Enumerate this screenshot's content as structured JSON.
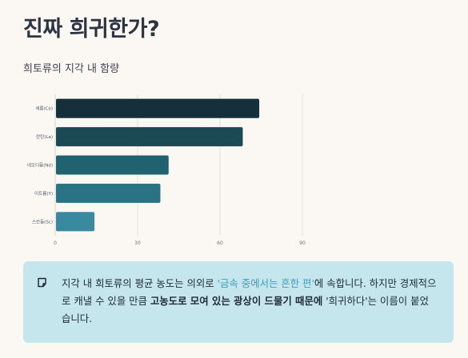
{
  "page": {
    "title": "진짜 희귀한가?",
    "subtitle": "희토류의 지각 내 함량"
  },
  "chart_data": {
    "type": "bar",
    "orientation": "horizontal",
    "title": "희토류의 지각 내 함량",
    "categories": [
      "세륨(Ce)",
      "란탄(La)",
      "네오디뮴(Nd)",
      "이트륨(Y)",
      "스칸듐(Sc)"
    ],
    "values": [
      74,
      68,
      41,
      38,
      14
    ],
    "xlim": [
      0,
      90
    ],
    "xticks": [
      "0",
      "30",
      "60",
      "90"
    ],
    "colors": [
      "#15303b",
      "#1b4954",
      "#20626f",
      "#2a7384",
      "#3a8a9f"
    ],
    "grid": true
  },
  "note": {
    "icon": "note-icon",
    "part1": "지각 내 희토류의 평균 농도는 의외로 ",
    "highlight": "'금속 중에서는 흔한 편'",
    "part2": "에 속합니다. 하지만 경제적으로 캐낼 수 있을 만큼 ",
    "bold": "고농도로 모여 있는 광상이 드물기 때문에",
    "part3": " '희귀하다'는 이름이 붙었습니다."
  }
}
